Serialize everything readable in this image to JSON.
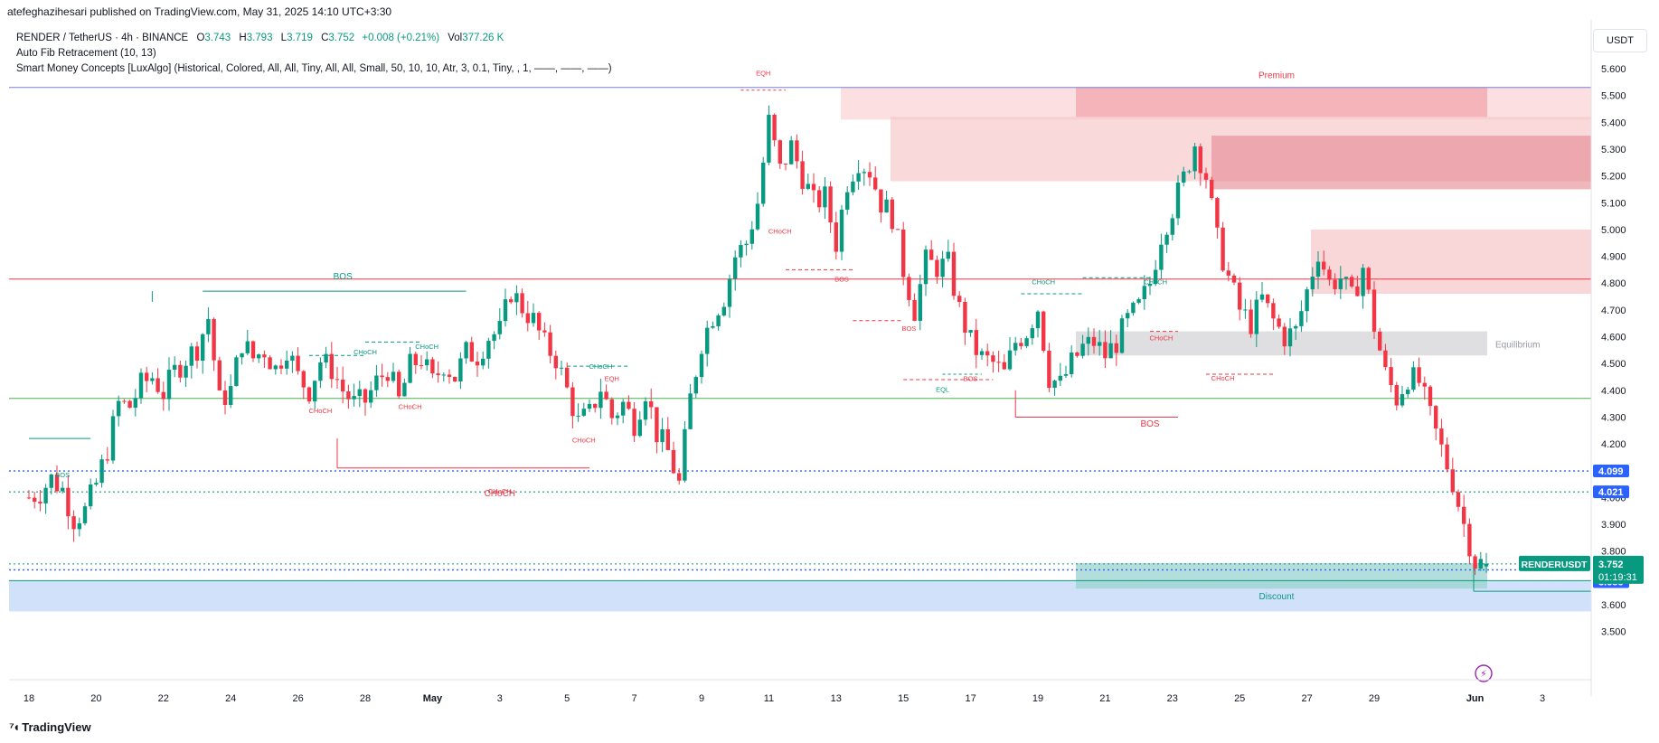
{
  "header": {
    "publisher_line": "atefeghazihesari published on TradingView.com, May 31, 2025 14:10 UTC+3:30"
  },
  "legend": {
    "symbol_line": "RENDER / TetherUS · 4h · BINANCE",
    "open_label": "O",
    "open": "3.743",
    "high_label": "H",
    "high": "3.793",
    "low_label": "L",
    "low": "3.719",
    "close_label": "C",
    "close": "3.752",
    "change": "+0.008 (+0.21%)",
    "vol_label": "Vol",
    "volume": "377.26 K",
    "indicator_1": "Auto Fib Retracement (10, 13)",
    "indicator_2": "Smart Money Concepts [LuxAlgo] (Historical, Colored, All, All, Tiny, All, All, Small, 50, 10, 10, Atr, 3, 0.1, Tiny, , 1, ——, ——, ——)"
  },
  "currency": "USDT",
  "footer": {
    "brand": "TradingView"
  },
  "colors": {
    "up": "#089981",
    "down": "#f23645",
    "premium": "#f7c5c8",
    "discount": "#c9dcf8",
    "equilibrium": "#d9d9dc",
    "accent_blue": "#2962ff"
  },
  "chart_data": {
    "type": "candlestick",
    "symbol": "RENDERUSDT",
    "timeframe": "4h",
    "y_axis": {
      "min": 3.46,
      "max": 5.66,
      "ticks": [
        "5.600",
        "5.500",
        "5.400",
        "5.300",
        "5.200",
        "5.100",
        "5.000",
        "4.900",
        "4.800",
        "4.700",
        "4.600",
        "4.500",
        "4.400",
        "4.300",
        "4.200",
        "4.100",
        "4.000",
        "3.900",
        "3.800",
        "3.700",
        "3.600",
        "3.500"
      ]
    },
    "x_axis": {
      "ticks": [
        {
          "label": "18",
          "i": 0
        },
        {
          "label": "20",
          "i": 12
        },
        {
          "label": "22",
          "i": 24
        },
        {
          "label": "24",
          "i": 36
        },
        {
          "label": "26",
          "i": 48
        },
        {
          "label": "28",
          "i": 60
        },
        {
          "label": "May",
          "i": 72
        },
        {
          "label": "3",
          "i": 84
        },
        {
          "label": "5",
          "i": 96
        },
        {
          "label": "7",
          "i": 108
        },
        {
          "label": "9",
          "i": 120
        },
        {
          "label": "11",
          "i": 132
        },
        {
          "label": "13",
          "i": 144
        },
        {
          "label": "15",
          "i": 156
        },
        {
          "label": "17",
          "i": 168
        },
        {
          "label": "19",
          "i": 180
        },
        {
          "label": "21",
          "i": 192
        },
        {
          "label": "23",
          "i": 204
        },
        {
          "label": "25",
          "i": 216
        },
        {
          "label": "27",
          "i": 228
        },
        {
          "label": "29",
          "i": 240
        },
        {
          "label": "Jun",
          "i": 258
        },
        {
          "label": "3",
          "i": 270
        }
      ]
    },
    "anchors": [
      [
        0,
        4.0
      ],
      [
        2,
        4.02
      ],
      [
        4,
        4.07
      ],
      [
        6,
        4.03
      ],
      [
        8,
        3.92
      ],
      [
        10,
        3.95
      ],
      [
        12,
        4.05
      ],
      [
        14,
        4.18
      ],
      [
        16,
        4.35
      ],
      [
        18,
        4.34
      ],
      [
        20,
        4.42
      ],
      [
        22,
        4.45
      ],
      [
        24,
        4.39
      ],
      [
        26,
        4.47
      ],
      [
        28,
        4.52
      ],
      [
        30,
        4.56
      ],
      [
        32,
        4.67
      ],
      [
        34,
        4.36
      ],
      [
        36,
        4.4
      ],
      [
        38,
        4.58
      ],
      [
        40,
        4.52
      ],
      [
        42,
        4.55
      ],
      [
        44,
        4.48
      ],
      [
        46,
        4.56
      ],
      [
        48,
        4.45
      ],
      [
        50,
        4.4
      ],
      [
        52,
        4.51
      ],
      [
        54,
        4.48
      ],
      [
        56,
        4.4
      ],
      [
        58,
        4.35
      ],
      [
        60,
        4.36
      ],
      [
        62,
        4.43
      ],
      [
        64,
        4.48
      ],
      [
        66,
        4.36
      ],
      [
        68,
        4.49
      ],
      [
        70,
        4.52
      ],
      [
        72,
        4.43
      ],
      [
        74,
        4.5
      ],
      [
        76,
        4.45
      ],
      [
        78,
        4.54
      ],
      [
        80,
        4.53
      ],
      [
        82,
        4.6
      ],
      [
        84,
        4.62
      ],
      [
        86,
        4.77
      ],
      [
        88,
        4.71
      ],
      [
        90,
        4.66
      ],
      [
        92,
        4.57
      ],
      [
        94,
        4.52
      ],
      [
        96,
        4.4
      ],
      [
        98,
        4.28
      ],
      [
        100,
        4.31
      ],
      [
        102,
        4.41
      ],
      [
        104,
        4.3
      ],
      [
        106,
        4.35
      ],
      [
        108,
        4.28
      ],
      [
        110,
        4.4
      ],
      [
        112,
        4.24
      ],
      [
        114,
        4.17
      ],
      [
        116,
        4.05
      ],
      [
        118,
        4.37
      ],
      [
        120,
        4.58
      ],
      [
        122,
        4.68
      ],
      [
        124,
        4.75
      ],
      [
        126,
        4.9
      ],
      [
        128,
        4.95
      ],
      [
        130,
        5.1
      ],
      [
        132,
        5.4
      ],
      [
        134,
        5.22
      ],
      [
        136,
        5.31
      ],
      [
        138,
        5.2
      ],
      [
        140,
        5.1
      ],
      [
        142,
        5.12
      ],
      [
        144,
        4.95
      ],
      [
        146,
        5.18
      ],
      [
        148,
        5.26
      ],
      [
        150,
        5.22
      ],
      [
        152,
        5.1
      ],
      [
        154,
        5.05
      ],
      [
        156,
        4.85
      ],
      [
        158,
        4.7
      ],
      [
        160,
        4.88
      ],
      [
        162,
        4.86
      ],
      [
        164,
        4.87
      ],
      [
        166,
        4.7
      ],
      [
        168,
        4.58
      ],
      [
        170,
        4.52
      ],
      [
        172,
        4.5
      ],
      [
        174,
        4.46
      ],
      [
        176,
        4.58
      ],
      [
        178,
        4.62
      ],
      [
        180,
        4.71
      ],
      [
        182,
        4.45
      ],
      [
        184,
        4.42
      ],
      [
        186,
        4.5
      ],
      [
        188,
        4.56
      ],
      [
        190,
        4.58
      ],
      [
        192,
        4.53
      ],
      [
        194,
        4.58
      ],
      [
        196,
        4.66
      ],
      [
        198,
        4.71
      ],
      [
        200,
        4.8
      ],
      [
        202,
        4.98
      ],
      [
        204,
        5.08
      ],
      [
        206,
        5.19
      ],
      [
        208,
        5.32
      ],
      [
        210,
        5.2
      ],
      [
        212,
        4.96
      ],
      [
        214,
        4.82
      ],
      [
        216,
        4.7
      ],
      [
        218,
        4.65
      ],
      [
        220,
        4.74
      ],
      [
        222,
        4.66
      ],
      [
        224,
        4.6
      ],
      [
        226,
        4.62
      ],
      [
        228,
        4.77
      ],
      [
        230,
        4.92
      ],
      [
        232,
        4.8
      ],
      [
        234,
        4.82
      ],
      [
        236,
        4.74
      ],
      [
        238,
        4.86
      ],
      [
        240,
        4.64
      ],
      [
        242,
        4.46
      ],
      [
        244,
        4.37
      ],
      [
        246,
        4.45
      ],
      [
        248,
        4.43
      ],
      [
        250,
        4.3
      ],
      [
        252,
        4.18
      ],
      [
        254,
        4.06
      ],
      [
        256,
        3.9
      ],
      [
        258,
        3.76
      ],
      [
        260,
        3.75
      ]
    ],
    "overlays": {
      "premium_label": "Premium",
      "discount_label": "Discount",
      "equilibrium_label": "Equilibrium",
      "structure_labels": [
        {
          "text": "BOS",
          "i": 56,
          "y": 4.815,
          "color": "up"
        },
        {
          "text": "BOS",
          "i": 6,
          "y": 4.075,
          "color": "up"
        },
        {
          "text": "CHoCH",
          "i": 60,
          "y": 4.535,
          "color": "up"
        },
        {
          "text": "CHoCH",
          "i": 71,
          "y": 4.555,
          "color": "up"
        },
        {
          "text": "CHoCH",
          "i": 102,
          "y": 4.48,
          "color": "up"
        },
        {
          "text": "CHoCH",
          "i": 52,
          "y": 4.315,
          "color": "down"
        },
        {
          "text": "CHoCH",
          "i": 68,
          "y": 4.33,
          "color": "down"
        },
        {
          "text": "CHoCH",
          "i": 84,
          "y": 4.015,
          "color": "down"
        },
        {
          "text": "CHoCH",
          "i": 99,
          "y": 4.205,
          "color": "down"
        },
        {
          "text": "CHoCH",
          "i": 134,
          "y": 4.985,
          "color": "down"
        },
        {
          "text": "CHoCH",
          "i": 181,
          "y": 4.795,
          "color": "up"
        },
        {
          "text": "CHoCH",
          "i": 201,
          "y": 4.795,
          "color": "up"
        },
        {
          "text": "CHoCH",
          "i": 202,
          "y": 4.587,
          "color": "down"
        },
        {
          "text": "CHoCH",
          "i": 213,
          "y": 4.437,
          "color": "down"
        },
        {
          "text": "BOS",
          "i": 145,
          "y": 4.805,
          "color": "down"
        },
        {
          "text": "BOS",
          "i": 157,
          "y": 4.622,
          "color": "down"
        },
        {
          "text": "BOS",
          "i": 168,
          "y": 4.435,
          "color": "down"
        },
        {
          "text": "BOS",
          "i": 200,
          "y": 4.265,
          "color": "down"
        },
        {
          "text": "CHoCH",
          "i": 84,
          "y": 4.005,
          "color": "down"
        },
        {
          "text": "EQH",
          "i": 131,
          "y": 5.575,
          "color": "down"
        },
        {
          "text": "EQH",
          "i": 104,
          "y": 4.435,
          "color": "down"
        },
        {
          "text": "EQL",
          "i": 163,
          "y": 4.395,
          "color": "up"
        }
      ]
    },
    "price_labels": [
      {
        "text": "4.099",
        "value": 4.099,
        "color": "#2962ff"
      },
      {
        "text": "4.021",
        "value": 4.021,
        "color": "#2962ff"
      },
      {
        "text": "3.730",
        "value": 3.73,
        "color": "#2962ff"
      },
      {
        "text": "3.686",
        "value": 3.686,
        "color": "#2962ff"
      }
    ],
    "last_price": {
      "symbol": "RENDERUSDT",
      "value": 3.752,
      "text": "3.752",
      "countdown": "01:19:31",
      "color": "#089981"
    }
  }
}
